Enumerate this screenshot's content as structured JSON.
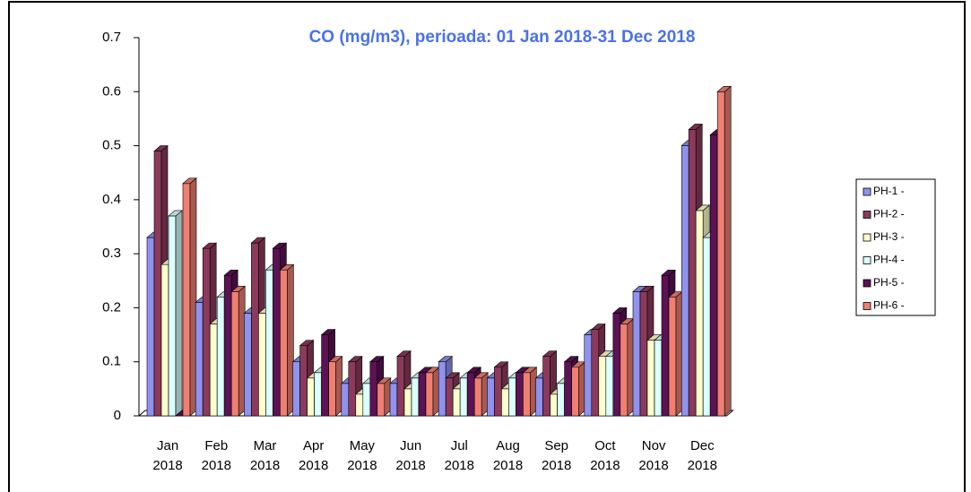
{
  "chart_data": {
    "type": "bar3d",
    "title": "CO (mg/m3), perioada: 01 Jan 2018-31 Dec 2018",
    "categories": [
      "Jan 2018",
      "Feb 2018",
      "Mar 2018",
      "Apr 2018",
      "May 2018",
      "Jun 2018",
      "Jul 2018",
      "Aug 2018",
      "Sep 2018",
      "Oct 2018",
      "Nov 2018",
      "Dec 2018"
    ],
    "series": [
      {
        "name": "PH-1 -",
        "color": "#8f92ee",
        "values": [
          0.33,
          0.21,
          0.19,
          0.1,
          0.06,
          0.06,
          0.1,
          0.07,
          0.07,
          0.15,
          0.23,
          0.5
        ]
      },
      {
        "name": "PH-2 -",
        "color": "#8c3a5c",
        "values": [
          0.49,
          0.31,
          0.32,
          0.13,
          0.1,
          0.11,
          0.07,
          0.09,
          0.11,
          0.16,
          0.23,
          0.53
        ]
      },
      {
        "name": "PH-3 -",
        "color": "#ffffcc",
        "values": [
          0.28,
          0.17,
          0.19,
          0.07,
          0.04,
          0.05,
          0.05,
          0.05,
          0.04,
          0.11,
          0.14,
          0.38
        ]
      },
      {
        "name": "PH-4 -",
        "color": "#dcffff",
        "values": [
          0.37,
          0.22,
          0.27,
          0.08,
          0.06,
          0.07,
          0.07,
          0.07,
          0.06,
          0.11,
          0.14,
          0.33
        ]
      },
      {
        "name": "PH-5 -",
        "color": "#5c1254",
        "values": [
          0,
          0.26,
          0.31,
          0.15,
          0.1,
          0.08,
          0.08,
          0.08,
          0.1,
          0.19,
          0.26,
          0.52
        ]
      },
      {
        "name": "PH-6 -",
        "color": "#f07f72",
        "values": [
          0.43,
          0.23,
          0.27,
          0.1,
          0.06,
          0.08,
          0.07,
          0.08,
          0.09,
          0.17,
          0.22,
          0.6
        ]
      }
    ],
    "ylim": [
      0,
      0.7
    ],
    "yticks": [
      0,
      0.1,
      0.2,
      0.3,
      0.4,
      0.5,
      0.6,
      0.7
    ],
    "legend": "right"
  }
}
